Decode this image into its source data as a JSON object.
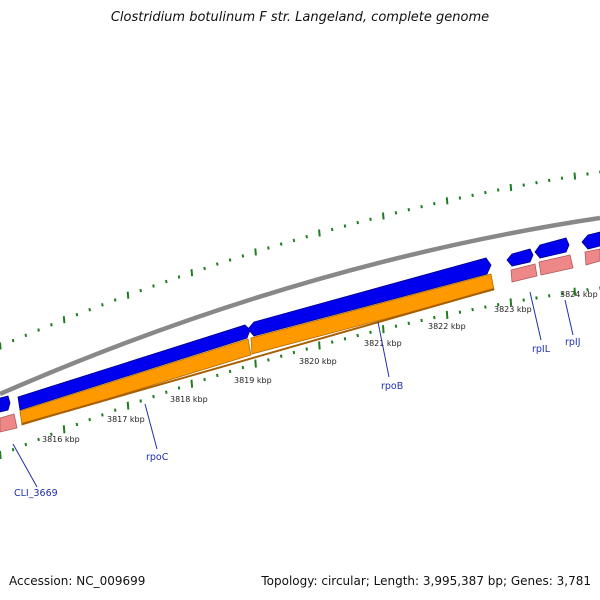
{
  "title": "Clostridium botulinum F str. Langeland, complete genome",
  "accession_text": "Accession: NC_009699",
  "topology_text": "Topology: circular; Length: 3,995,387 bp; Genes: 3,781",
  "ruler_labels": [
    "3816 kbp",
    "3817 kbp",
    "3818 kbp",
    "3819 kbp",
    "3820 kbp",
    "3821 kbp",
    "3822 kbp",
    "3823 kbp",
    "3824 kbp"
  ],
  "gene_labels": [
    "CLI_3669",
    "rpoC",
    "rpoB",
    "rpIL",
    "rpIJ"
  ],
  "colors": {
    "backbone": "#888888",
    "forward_gene": "#0000ee",
    "cds": "#ff9900",
    "rna": "#ee8888",
    "ticks": "#1e7d1e",
    "gene_label": "#1f2fb0"
  }
}
